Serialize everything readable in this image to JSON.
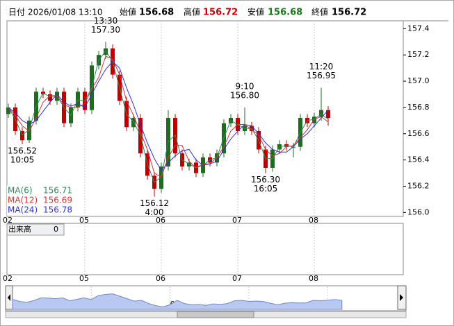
{
  "header": {
    "date_label": "日付",
    "date": "2026/01/08 13:10",
    "open_label": "始値",
    "open": 156.68,
    "high_label": "高値",
    "high": 156.72,
    "low_label": "安値",
    "low": 156.68,
    "close_label": "終値",
    "close": 156.72
  },
  "chart_data": {
    "type": "candlestick",
    "categories": [
      "02",
      null,
      null,
      null,
      null,
      null,
      null,
      null,
      null,
      null,
      null,
      "05",
      null,
      null,
      null,
      null,
      null,
      null,
      null,
      null,
      null,
      null,
      "06",
      null,
      null,
      null,
      null,
      null,
      null,
      null,
      null,
      null,
      null,
      "07",
      null,
      null,
      null,
      null,
      null,
      null,
      null,
      null,
      null,
      null,
      "08",
      null,
      null
    ],
    "open": [
      156.75,
      156.8,
      156.62,
      156.55,
      156.7,
      156.92,
      156.9,
      156.85,
      156.92,
      156.68,
      156.8,
      156.92,
      156.78,
      157.12,
      157.2,
      157.25,
      157.05,
      156.85,
      156.65,
      156.72,
      156.45,
      156.28,
      156.18,
      156.35,
      156.72,
      156.45,
      156.35,
      156.38,
      156.3,
      156.42,
      156.38,
      156.45,
      156.68,
      156.72,
      156.62,
      156.66,
      156.62,
      156.48,
      156.34,
      156.48,
      156.52,
      156.5,
      156.5,
      156.72,
      156.68,
      156.73,
      156.78
    ],
    "high": [
      156.83,
      156.83,
      156.65,
      156.73,
      156.95,
      156.95,
      156.93,
      156.95,
      156.95,
      156.83,
      156.95,
      156.95,
      157.15,
      157.23,
      157.3,
      157.28,
      157.08,
      156.88,
      156.75,
      156.75,
      156.48,
      156.31,
      156.38,
      156.78,
      156.75,
      156.48,
      156.41,
      156.41,
      156.45,
      156.45,
      156.48,
      156.71,
      156.75,
      156.75,
      156.8,
      156.69,
      156.65,
      156.51,
      156.51,
      156.55,
      156.55,
      156.53,
      156.75,
      156.75,
      156.76,
      156.95,
      156.81
    ],
    "low": [
      156.72,
      156.59,
      156.52,
      156.53,
      156.67,
      156.87,
      156.82,
      156.82,
      156.65,
      156.65,
      156.77,
      156.75,
      156.75,
      157.09,
      157.17,
      157.02,
      156.82,
      156.62,
      156.62,
      156.42,
      156.25,
      156.12,
      156.15,
      156.32,
      156.42,
      156.32,
      156.32,
      156.27,
      156.27,
      156.35,
      156.35,
      156.42,
      156.65,
      156.59,
      156.59,
      156.59,
      156.45,
      156.3,
      156.31,
      156.45,
      156.47,
      156.42,
      156.47,
      156.65,
      156.65,
      156.7,
      156.66
    ],
    "close": [
      156.8,
      156.62,
      156.55,
      156.7,
      156.92,
      156.9,
      156.85,
      156.92,
      156.68,
      156.8,
      156.92,
      156.78,
      157.12,
      157.2,
      157.25,
      157.05,
      156.85,
      156.65,
      156.72,
      156.45,
      156.28,
      156.18,
      156.35,
      156.72,
      156.45,
      156.35,
      156.38,
      156.3,
      156.42,
      156.38,
      156.45,
      156.68,
      156.72,
      156.62,
      156.66,
      156.62,
      156.48,
      156.34,
      156.48,
      156.52,
      156.5,
      156.5,
      156.72,
      156.68,
      156.73,
      156.78,
      156.72
    ],
    "up_color": "#1f6b1f",
    "down_color": "#c00000",
    "series": [
      {
        "name": "MA(6)",
        "color": "#2e8b57",
        "values": [
          156.8,
          156.71,
          156.59,
          156.63,
          156.81,
          156.91,
          156.88,
          156.89,
          156.8,
          156.74,
          156.86,
          156.85,
          156.95,
          157.16,
          157.23,
          157.15,
          156.95,
          156.75,
          156.69,
          156.59,
          156.37,
          156.23,
          156.27,
          156.54,
          156.59,
          156.4,
          156.37,
          156.34,
          156.36,
          156.4,
          156.42,
          156.57,
          156.7,
          156.67,
          156.64,
          156.64,
          156.55,
          156.41,
          156.41,
          156.5,
          156.51,
          156.5,
          156.61,
          156.7,
          156.71,
          156.75,
          156.71
        ]
      },
      {
        "name": "MA(12)",
        "color": "#e03030",
        "values": [
          156.8,
          156.74,
          156.66,
          156.62,
          156.72,
          156.84,
          156.89,
          156.89,
          156.82,
          156.8,
          156.8,
          156.83,
          156.94,
          157.03,
          157.19,
          157.17,
          157.05,
          156.85,
          156.74,
          156.61,
          156.48,
          156.3,
          156.27,
          156.42,
          156.51,
          156.51,
          156.39,
          156.34,
          156.37,
          156.37,
          156.42,
          156.5,
          156.62,
          156.67,
          156.67,
          156.63,
          156.59,
          156.48,
          156.43,
          156.45,
          156.5,
          156.51,
          156.57,
          156.63,
          156.71,
          156.73,
          156.69
        ]
      },
      {
        "name": "MA(24)",
        "color": "#3030e0",
        "values": [
          156.8,
          156.76,
          156.7,
          156.67,
          156.7,
          156.77,
          156.84,
          156.9,
          156.84,
          156.81,
          156.83,
          156.8,
          156.9,
          157.0,
          157.09,
          157.15,
          157.1,
          156.95,
          156.82,
          156.67,
          156.53,
          156.41,
          156.32,
          156.38,
          156.43,
          156.47,
          156.48,
          156.4,
          156.36,
          156.37,
          156.39,
          156.48,
          156.56,
          156.62,
          156.67,
          156.66,
          156.6,
          156.53,
          156.48,
          156.46,
          156.46,
          156.5,
          156.56,
          156.6,
          156.66,
          156.72,
          156.78
        ]
      }
    ],
    "annotations": [
      {
        "lines": [
          "13:30",
          "157.30"
        ],
        "value": 157.3
      },
      {
        "lines": [
          "156.52",
          "10:05"
        ],
        "value": 156.52
      },
      {
        "lines": [
          "156.12",
          "4:00"
        ],
        "value": 156.12
      },
      {
        "lines": [
          "9:10",
          "156.80"
        ],
        "value": 156.8
      },
      {
        "lines": [
          "156.30",
          "16:05"
        ],
        "value": 156.3
      },
      {
        "lines": [
          "11:20",
          "156.95"
        ],
        "value": 156.95
      }
    ],
    "ylim": [
      155.97,
      157.46
    ],
    "yticks": [
      {
        "value": 156,
        "label": "156.0"
      },
      156.2,
      156.4,
      156.6,
      156.8,
      {
        "value": 157,
        "label": "157.0"
      },
      157.2,
      157.4
    ],
    "volume_label": "出来高",
    "volume_value": 0
  }
}
